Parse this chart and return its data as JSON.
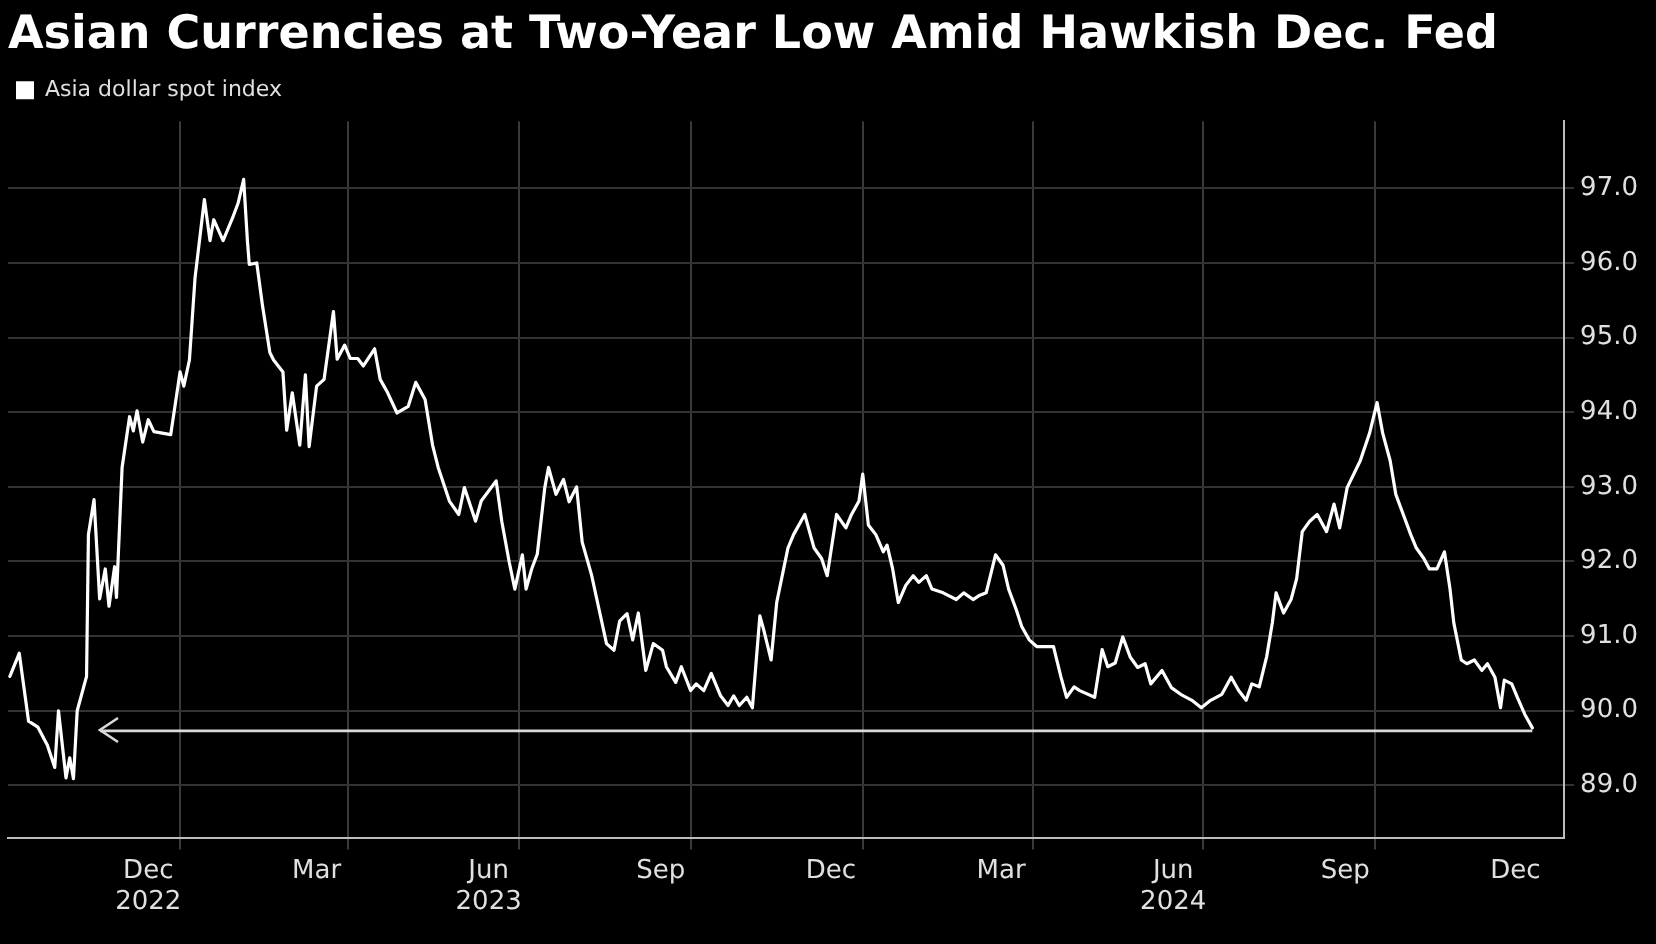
{
  "chart_data": {
    "type": "line",
    "title": "Asian Currencies at Two-Year Low Amid Hawkish Dec. Fed",
    "x": [
      "2022-10-02",
      "2022-10-07",
      "2022-10-12",
      "2022-10-17",
      "2022-10-22",
      "2022-10-26",
      "2022-10-28",
      "2022-11-01",
      "2022-11-03",
      "2022-11-05",
      "2022-11-07",
      "2022-11-12",
      "2022-11-13",
      "2022-11-16",
      "2022-11-19",
      "2022-11-22",
      "2022-11-24",
      "2022-11-27",
      "2022-11-28",
      "2022-12-01",
      "2022-12-05",
      "2022-12-07",
      "2022-12-09",
      "2022-12-12",
      "2022-12-15",
      "2022-12-18",
      "2022-12-27",
      "2023-01-01",
      "2023-01-03",
      "2023-01-06",
      "2023-01-09",
      "2023-01-14",
      "2023-01-17",
      "2023-01-19",
      "2023-01-24",
      "2023-01-29",
      "2023-02-01",
      "2023-02-04",
      "2023-02-06",
      "2023-02-07",
      "2023-02-11",
      "2023-02-14",
      "2023-02-18",
      "2023-02-20",
      "2023-02-25",
      "2023-02-27",
      "2023-03-02",
      "2023-03-06",
      "2023-03-09",
      "2023-03-11",
      "2023-03-15",
      "2023-03-19",
      "2023-03-24",
      "2023-03-26",
      "2023-03-30",
      "2023-04-02",
      "2023-04-06",
      "2023-04-09",
      "2023-04-15",
      "2023-04-18",
      "2023-04-22",
      "2023-04-27",
      "2023-05-03",
      "2023-05-07",
      "2023-05-12",
      "2023-05-16",
      "2023-05-19",
      "2023-05-25",
      "2023-05-30",
      "2023-06-02",
      "2023-06-08",
      "2023-06-11",
      "2023-06-19",
      "2023-06-22",
      "2023-06-26",
      "2023-06-29",
      "2023-07-03",
      "2023-07-05",
      "2023-07-08",
      "2023-07-11",
      "2023-07-15",
      "2023-07-17",
      "2023-07-21",
      "2023-07-25",
      "2023-07-28",
      "2023-08-01",
      "2023-08-04",
      "2023-08-09",
      "2023-08-13",
      "2023-08-17",
      "2023-08-21",
      "2023-08-24",
      "2023-08-28",
      "2023-08-31",
      "2023-09-03",
      "2023-09-07",
      "2023-09-11",
      "2023-09-16",
      "2023-09-18",
      "2023-09-23",
      "2023-09-26",
      "2023-10-01",
      "2023-10-04",
      "2023-10-08",
      "2023-10-12",
      "2023-10-17",
      "2023-10-21",
      "2023-10-24",
      "2023-10-27",
      "2023-10-31",
      "2023-11-03",
      "2023-11-07",
      "2023-11-09",
      "2023-11-13",
      "2023-11-16",
      "2023-11-22",
      "2023-11-25",
      "2023-12-01",
      "2023-12-06",
      "2023-12-10",
      "2023-12-13",
      "2023-12-18",
      "2023-12-23",
      "2023-12-26",
      "2023-12-30",
      "2024-01-01",
      "2024-01-04",
      "2024-01-08",
      "2024-01-12",
      "2024-01-14",
      "2024-01-17",
      "2024-01-20",
      "2024-01-24",
      "2024-01-28",
      "2024-01-31",
      "2024-02-04",
      "2024-02-07",
      "2024-02-13",
      "2024-02-20",
      "2024-02-24",
      "2024-02-29",
      "2024-03-03",
      "2024-03-07",
      "2024-03-12",
      "2024-03-16",
      "2024-03-19",
      "2024-03-23",
      "2024-03-26",
      "2024-03-30",
      "2024-04-03",
      "2024-04-08",
      "2024-04-12",
      "2024-04-16",
      "2024-04-19",
      "2024-04-23",
      "2024-04-26",
      "2024-05-04",
      "2024-05-08",
      "2024-05-11",
      "2024-05-15",
      "2024-05-19",
      "2024-05-23",
      "2024-05-27",
      "2024-05-31",
      "2024-06-03",
      "2024-06-09",
      "2024-06-14",
      "2024-06-19",
      "2024-06-25",
      "2024-06-30",
      "2024-07-05",
      "2024-07-11",
      "2024-07-16",
      "2024-07-20",
      "2024-07-24",
      "2024-07-27",
      "2024-07-31",
      "2024-08-04",
      "2024-08-07",
      "2024-08-09",
      "2024-08-13",
      "2024-08-17",
      "2024-08-20",
      "2024-08-23",
      "2024-08-27",
      "2024-08-31",
      "2024-09-05",
      "2024-09-09",
      "2024-09-12",
      "2024-09-16",
      "2024-09-23",
      "2024-09-28",
      "2024-10-02",
      "2024-10-05",
      "2024-10-09",
      "2024-10-12",
      "2024-10-20",
      "2024-10-23",
      "2024-10-27",
      "2024-10-30",
      "2024-11-03",
      "2024-11-07",
      "2024-11-10",
      "2024-11-12",
      "2024-11-16",
      "2024-11-19",
      "2024-11-23",
      "2024-11-27",
      "2024-11-30",
      "2024-12-04",
      "2024-12-07",
      "2024-12-09",
      "2024-12-13",
      "2024-12-16",
      "2024-12-20",
      "2024-12-24"
    ],
    "series": [
      {
        "name": "Asia dollar spot index",
        "color": "#ffffff",
        "values": [
          90.46,
          90.77,
          89.86,
          89.78,
          89.54,
          89.24,
          90.0,
          89.1,
          89.37,
          89.09,
          90.0,
          90.46,
          92.36,
          92.83,
          91.5,
          91.9,
          91.4,
          91.93,
          91.52,
          93.26,
          93.94,
          93.75,
          94.02,
          93.6,
          93.9,
          93.74,
          93.7,
          94.54,
          94.35,
          94.7,
          95.8,
          96.85,
          96.3,
          96.58,
          96.3,
          96.6,
          96.8,
          97.12,
          96.3,
          95.98,
          96.0,
          95.44,
          94.8,
          94.7,
          94.54,
          93.76,
          94.26,
          93.56,
          94.5,
          93.54,
          94.35,
          94.44,
          95.35,
          94.71,
          94.9,
          94.72,
          94.72,
          94.62,
          94.85,
          94.44,
          94.26,
          93.99,
          94.08,
          94.4,
          94.17,
          93.56,
          93.26,
          92.81,
          92.63,
          92.99,
          92.54,
          92.81,
          93.08,
          92.54,
          91.99,
          91.63,
          92.09,
          91.63,
          91.9,
          92.1,
          92.99,
          93.26,
          92.9,
          93.1,
          92.8,
          93.0,
          92.26,
          91.82,
          91.36,
          90.9,
          90.81,
          91.2,
          91.3,
          90.95,
          91.31,
          90.54,
          90.9,
          90.81,
          90.59,
          90.38,
          90.59,
          90.27,
          90.36,
          90.27,
          90.5,
          90.2,
          90.07,
          90.2,
          90.07,
          90.18,
          90.04,
          91.27,
          91.09,
          90.68,
          91.45,
          92.18,
          92.36,
          92.63,
          92.18,
          92.04,
          91.81,
          92.63,
          92.45,
          92.63,
          92.81,
          93.17,
          92.49,
          92.36,
          92.13,
          92.22,
          91.9,
          91.45,
          91.68,
          91.81,
          91.72,
          91.81,
          91.63,
          91.58,
          91.49,
          91.58,
          91.49,
          91.54,
          91.58,
          92.09,
          91.95,
          91.63,
          91.36,
          91.13,
          90.95,
          90.86,
          90.86,
          90.86,
          90.45,
          90.18,
          90.32,
          90.27,
          90.18,
          90.82,
          90.59,
          90.64,
          90.99,
          90.72,
          90.58,
          90.63,
          90.36,
          90.54,
          90.31,
          90.22,
          90.14,
          90.04,
          90.14,
          90.22,
          90.45,
          90.27,
          90.14,
          90.36,
          90.32,
          90.73,
          91.18,
          91.58,
          91.31,
          91.49,
          91.77,
          92.4,
          92.54,
          92.63,
          92.4,
          92.77,
          92.45,
          92.99,
          93.35,
          93.72,
          94.13,
          93.72,
          93.35,
          92.9,
          92.36,
          92.18,
          92.04,
          91.9,
          91.9,
          92.13,
          91.63,
          91.18,
          90.68,
          90.63,
          90.68,
          90.54,
          90.63,
          90.45,
          90.04,
          90.41,
          90.36,
          90.18,
          89.95,
          89.77
        ]
      }
    ],
    "xlim": [
      "2022-10-01",
      "2025-01-10"
    ],
    "xticks": [
      {
        "value": "2022-12-15",
        "label": "Dec\n2022"
      },
      {
        "value": "2023-01-01",
        "label": null
      },
      {
        "value": "2023-03-15",
        "label": "Mar"
      },
      {
        "value": "2023-04-01",
        "label": null
      },
      {
        "value": "2023-06-15",
        "label": "Jun\n2023"
      },
      {
        "value": "2023-07-01",
        "label": null
      },
      {
        "value": "2023-09-15",
        "label": "Sep"
      },
      {
        "value": "2023-10-01",
        "label": null
      },
      {
        "value": "2023-12-15",
        "label": "Dec"
      },
      {
        "value": "2024-01-01",
        "label": null
      },
      {
        "value": "2024-03-15",
        "label": "Mar"
      },
      {
        "value": "2024-04-01",
        "label": null
      },
      {
        "value": "2024-06-15",
        "label": "Jun\n2024"
      },
      {
        "value": "2024-07-01",
        "label": null
      },
      {
        "value": "2024-09-15",
        "label": "Sep"
      },
      {
        "value": "2024-10-01",
        "label": null
      },
      {
        "value": "2024-12-15",
        "label": "Dec"
      }
    ],
    "ylim": [
      88.3,
      97.9
    ],
    "yticks": [
      {
        "value": 89,
        "label": "89.0"
      },
      {
        "value": 90,
        "label": "90.0"
      },
      {
        "value": 91,
        "label": "91.0"
      },
      {
        "value": 92,
        "label": "92.0"
      },
      {
        "value": 93,
        "label": "93.0"
      },
      {
        "value": 94,
        "label": "94.0"
      },
      {
        "value": 95,
        "label": "95.0"
      },
      {
        "value": 96,
        "label": "96.0"
      },
      {
        "value": 97,
        "label": "97.0"
      }
    ],
    "ref_lines": [
      {
        "axis": "y",
        "value": 89.73,
        "color": "#d9d9d9"
      }
    ],
    "grid": true,
    "legend": "top left"
  }
}
